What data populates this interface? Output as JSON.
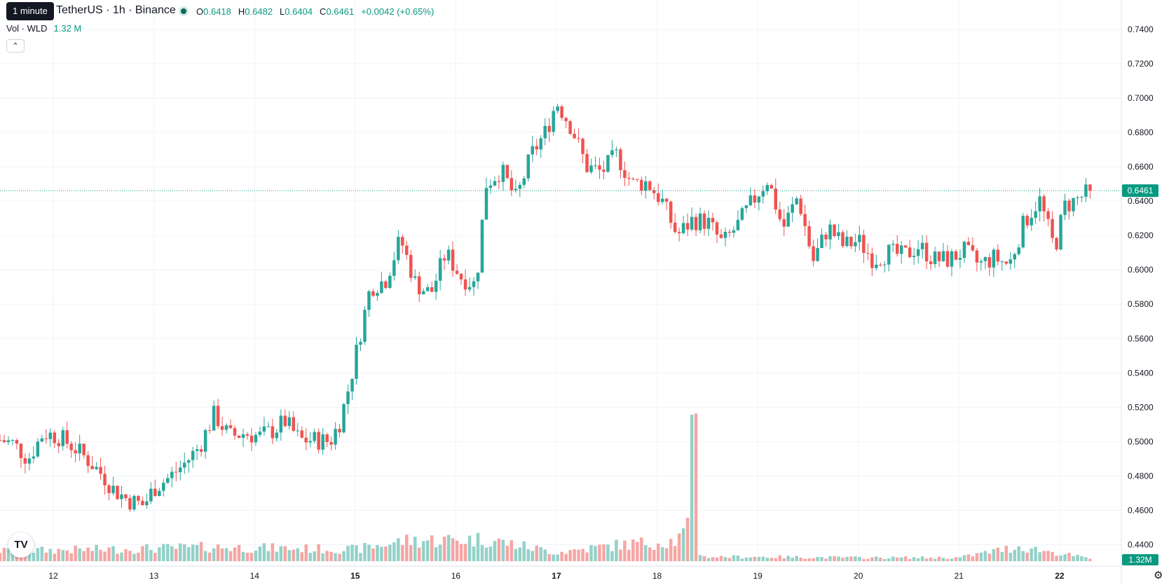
{
  "header": {
    "tooltip": "1 minute",
    "symbol": "TetherUS · 1h · Binance",
    "ohlc": {
      "o_label": "O",
      "o_value": "0.6418",
      "h_label": "H",
      "h_value": "0.6482",
      "l_label": "L",
      "l_value": "0.6404",
      "c_label": "C",
      "c_value": "0.6461",
      "change": "+0.0042 (+0.65%)"
    },
    "volume_label": "Vol · WLD",
    "volume_value": "1.32 M",
    "collapse_icon": "chevron-up-icon"
  },
  "colors": {
    "up": "#26a69a",
    "up_volume": "#93d1c8",
    "down": "#ef5350",
    "down_volume": "#f5a6a4",
    "grid": "#f0f3fa",
    "last_price_line": "#089981",
    "last_price_label_bg": "#089981"
  },
  "chart_data": {
    "type": "candlestick",
    "interval": "1h",
    "x_tick_labels": [
      "12",
      "13",
      "14",
      "15",
      "16",
      "17",
      "18",
      "19",
      "20",
      "21",
      "22"
    ],
    "bold_x_ticks": [
      "15",
      "17",
      "22"
    ],
    "y_tick_labels": [
      "0.4400",
      "0.4600",
      "0.4800",
      "0.5000",
      "0.5200",
      "0.5400",
      "0.5600",
      "0.5800",
      "0.6000",
      "0.6200",
      "0.6400",
      "0.6600",
      "0.6800",
      "0.7000",
      "0.7200",
      "0.7400"
    ],
    "ylim": [
      0.4337,
      0.742
    ],
    "x_range_days": [
      11.47,
      22.37
    ],
    "last_price": 0.6461,
    "last_price_label": "0.6461",
    "volume_last_label": "1.32M",
    "grid": true,
    "close_path": [
      [
        11.47,
        0.501
      ],
      [
        11.6,
        0.499
      ],
      [
        11.75,
        0.49
      ],
      [
        11.9,
        0.505
      ],
      [
        12.05,
        0.503
      ],
      [
        12.2,
        0.497
      ],
      [
        12.35,
        0.489
      ],
      [
        12.5,
        0.48
      ],
      [
        12.6,
        0.472
      ],
      [
        12.75,
        0.466
      ],
      [
        12.9,
        0.463
      ],
      [
        13.0,
        0.473
      ],
      [
        13.15,
        0.479
      ],
      [
        13.3,
        0.487
      ],
      [
        13.45,
        0.497
      ],
      [
        13.6,
        0.516
      ],
      [
        13.75,
        0.503
      ],
      [
        13.9,
        0.505
      ],
      [
        14.05,
        0.503
      ],
      [
        14.2,
        0.507
      ],
      [
        14.3,
        0.512
      ],
      [
        14.45,
        0.501
      ],
      [
        14.6,
        0.501
      ],
      [
        14.75,
        0.5
      ],
      [
        14.85,
        0.512
      ],
      [
        14.95,
        0.535
      ],
      [
        15.05,
        0.563
      ],
      [
        15.15,
        0.59
      ],
      [
        15.3,
        0.594
      ],
      [
        15.45,
        0.618
      ],
      [
        15.6,
        0.592
      ],
      [
        15.75,
        0.586
      ],
      [
        15.9,
        0.61
      ],
      [
        16.05,
        0.596
      ],
      [
        16.2,
        0.591
      ],
      [
        16.3,
        0.65
      ],
      [
        16.45,
        0.658
      ],
      [
        16.6,
        0.641
      ],
      [
        16.75,
        0.667
      ],
      [
        16.9,
        0.681
      ],
      [
        17.0,
        0.698
      ],
      [
        17.15,
        0.683
      ],
      [
        17.3,
        0.66
      ],
      [
        17.45,
        0.657
      ],
      [
        17.6,
        0.667
      ],
      [
        17.75,
        0.65
      ],
      [
        17.9,
        0.651
      ],
      [
        18.05,
        0.64
      ],
      [
        18.2,
        0.62
      ],
      [
        18.35,
        0.629
      ],
      [
        18.5,
        0.628
      ],
      [
        18.65,
        0.615
      ],
      [
        18.8,
        0.626
      ],
      [
        18.95,
        0.64
      ],
      [
        19.1,
        0.653
      ],
      [
        19.25,
        0.624
      ],
      [
        19.4,
        0.643
      ],
      [
        19.55,
        0.605
      ],
      [
        19.7,
        0.625
      ],
      [
        19.85,
        0.614
      ],
      [
        20.0,
        0.617
      ],
      [
        20.15,
        0.606
      ],
      [
        20.3,
        0.61
      ],
      [
        20.45,
        0.608
      ],
      [
        20.6,
        0.614
      ],
      [
        20.75,
        0.606
      ],
      [
        20.9,
        0.606
      ],
      [
        21.05,
        0.611
      ],
      [
        21.2,
        0.603
      ],
      [
        21.35,
        0.607
      ],
      [
        21.5,
        0.603
      ],
      [
        21.65,
        0.628
      ],
      [
        21.8,
        0.641
      ],
      [
        21.95,
        0.612
      ],
      [
        22.05,
        0.637
      ],
      [
        22.2,
        0.642
      ],
      [
        22.32,
        0.6461
      ]
    ],
    "volume_spikes": [
      [
        18.35,
        0.5
      ],
      [
        18.38,
        0.504
      ]
    ],
    "volume_path": [
      [
        11.47,
        0.035
      ],
      [
        12.5,
        0.04
      ],
      [
        13.6,
        0.048
      ],
      [
        15.0,
        0.04
      ],
      [
        15.5,
        0.07
      ],
      [
        16.3,
        0.075
      ],
      [
        17.0,
        0.03
      ],
      [
        17.6,
        0.055
      ],
      [
        18.2,
        0.07
      ],
      [
        18.3,
        0.11
      ],
      [
        18.45,
        0.015
      ],
      [
        19.0,
        0.015
      ],
      [
        20.0,
        0.012
      ],
      [
        21.0,
        0.012
      ],
      [
        21.6,
        0.05
      ],
      [
        22.32,
        0.008
      ]
    ]
  }
}
